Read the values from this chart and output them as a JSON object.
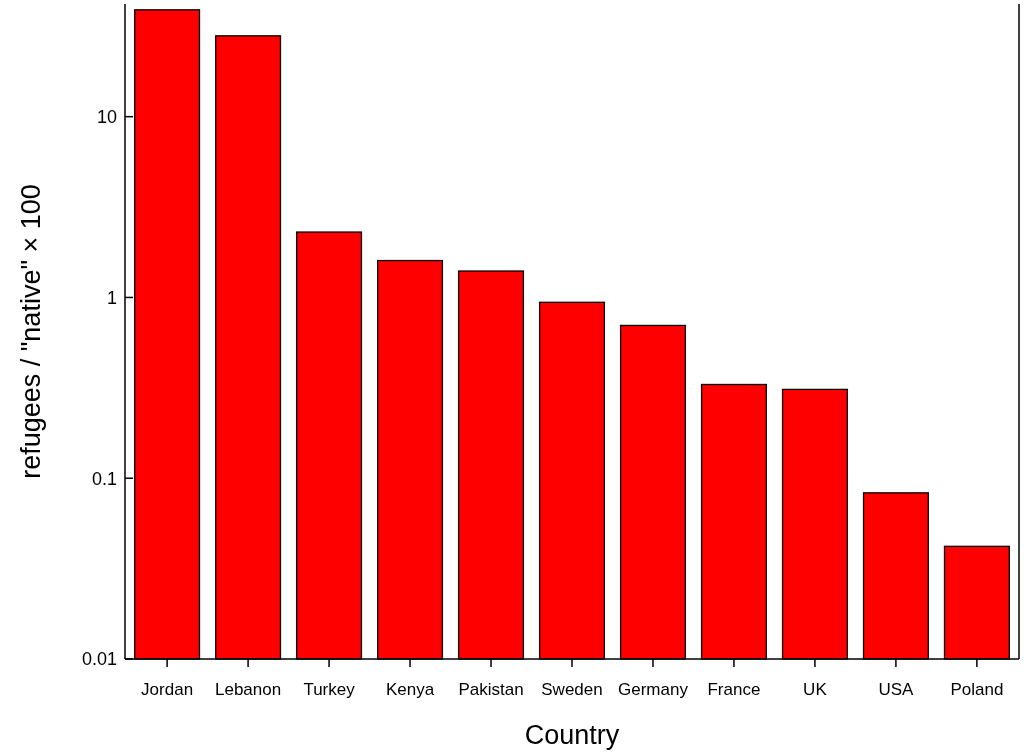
{
  "chart_data": {
    "type": "bar",
    "xlabel": "Country",
    "ylabel": "refugees / \"native\" × 100",
    "categories": [
      "Jordan",
      "Lebanon",
      "Turkey",
      "Kenya",
      "Pakistan",
      "Sweden",
      "Germany",
      "France",
      "UK",
      "USA",
      "Poland"
    ],
    "values": [
      39,
      28,
      2.3,
      1.6,
      1.4,
      0.94,
      0.7,
      0.33,
      0.31,
      0.083,
      0.042
    ],
    "color": "#ff0000",
    "log": true,
    "ylim": [
      0.01,
      42
    ],
    "yticks": [
      0.01,
      0.1,
      1,
      10
    ]
  }
}
